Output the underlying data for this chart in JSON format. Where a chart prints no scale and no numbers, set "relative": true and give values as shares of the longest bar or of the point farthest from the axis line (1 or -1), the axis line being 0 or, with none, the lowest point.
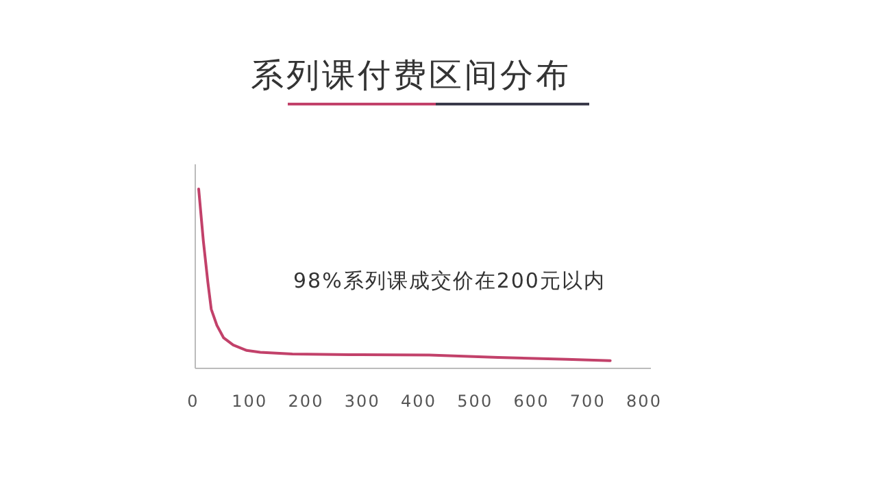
{
  "chart_data": {
    "type": "line",
    "title": "系列课付费区间分布",
    "relative": true,
    "x": [
      9.7,
      18,
      26,
      32,
      42,
      54,
      71,
      95,
      119,
      176,
      298,
      419,
      541,
      663,
      740
    ],
    "series": [
      {
        "color": "#c2416a",
        "values": [
          1,
          0.71,
          0.48,
          0.33,
          0.24,
          0.17,
          0.13,
          0.1,
          0.09,
          0.08,
          0.076,
          0.074,
          0.061,
          0.051,
          0.043
        ]
      }
    ],
    "xlim": [
      0,
      800
    ],
    "xticks": [
      0,
      100,
      200,
      300,
      400,
      500,
      600,
      700,
      800
    ],
    "annotations": [
      "98%系列课成交价在200元以内"
    ]
  }
}
